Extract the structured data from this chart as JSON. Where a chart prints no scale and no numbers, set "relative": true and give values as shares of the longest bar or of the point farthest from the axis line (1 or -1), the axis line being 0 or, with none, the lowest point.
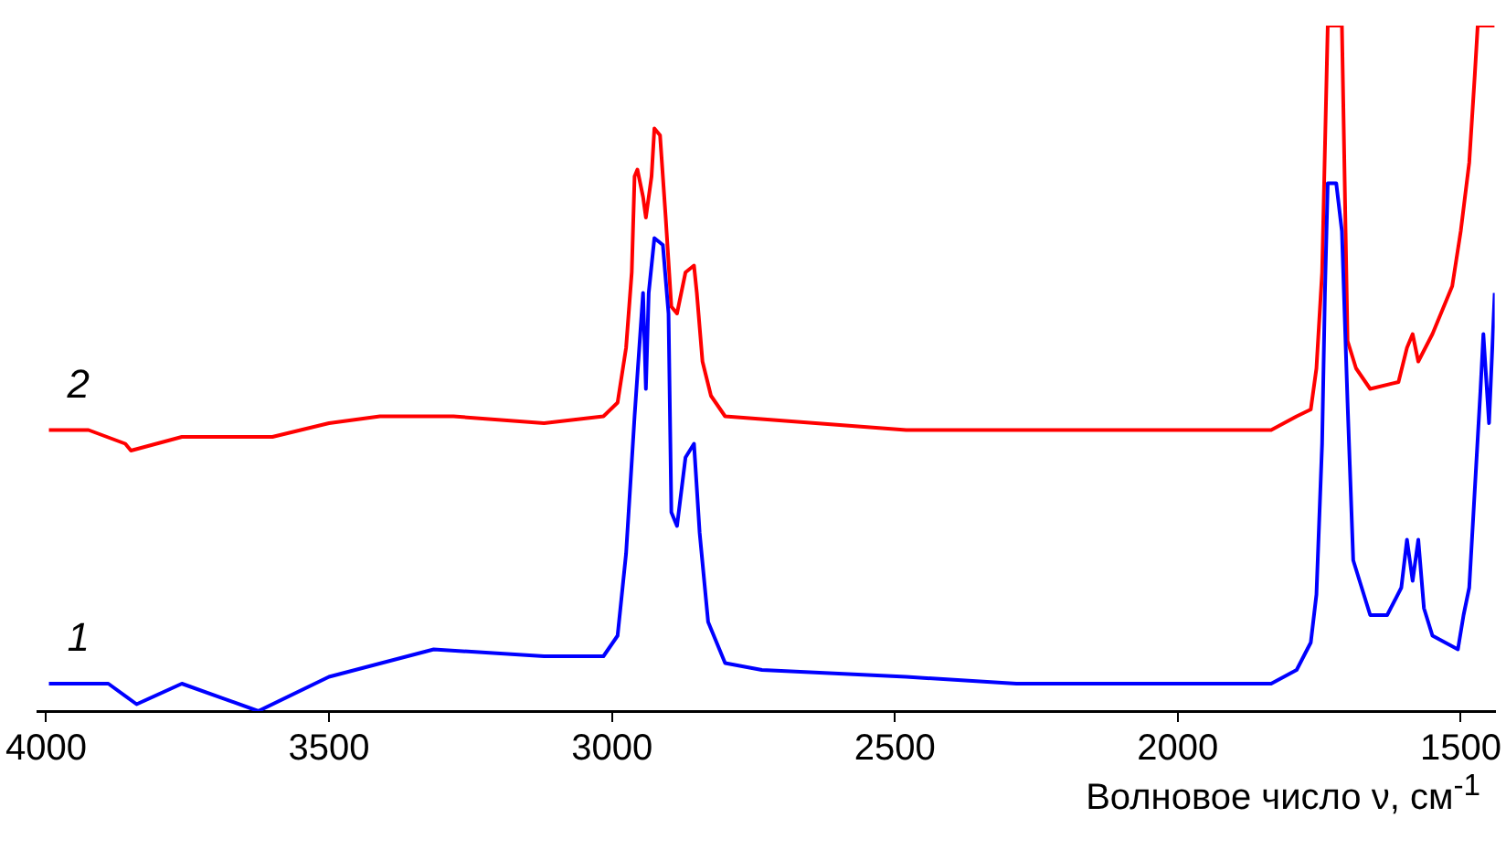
{
  "chart_data": {
    "type": "line",
    "relative": true,
    "xlabel": "Волновое число ν, см$^{-1}$",
    "xlim": [
      4015,
      1440
    ],
    "xticks": [
      4000,
      3500,
      3000,
      2500,
      2000,
      1500
    ],
    "legend": false,
    "marker": "none",
    "line_style": "solid",
    "series": [
      {
        "name": "1",
        "color": "#0000ff",
        "x": [
          3995,
          3890,
          3840,
          3760,
          3625,
          3500,
          3315,
          3120,
          3015,
          2990,
          2975,
          2960,
          2945,
          2940,
          2935,
          2925,
          2910,
          2900,
          2895,
          2885,
          2870,
          2855,
          2845,
          2830,
          2800,
          2735,
          2480,
          2285,
          2000,
          1835,
          1790,
          1765,
          1755,
          1745,
          1740,
          1735,
          1720,
          1710,
          1700,
          1690,
          1660,
          1630,
          1605,
          1595,
          1585,
          1575,
          1565,
          1550,
          1505,
          1495,
          1485,
          1465,
          1460,
          1450,
          1440
        ],
        "values": [
          0.04,
          0.04,
          0.01,
          0.04,
          0,
          0.05,
          0.09,
          0.08,
          0.08,
          0.11,
          0.23,
          0.43,
          0.61,
          0.47,
          0.61,
          0.69,
          0.68,
          0.58,
          0.29,
          0.27,
          0.37,
          0.39,
          0.26,
          0.13,
          0.07,
          0.06,
          0.05,
          0.04,
          0.04,
          0.04,
          0.06,
          0.1,
          0.17,
          0.39,
          0.61,
          0.77,
          0.77,
          0.7,
          0.45,
          0.22,
          0.14,
          0.14,
          0.18,
          0.25,
          0.19,
          0.25,
          0.15,
          0.11,
          0.09,
          0.14,
          0.18,
          0.47,
          0.55,
          0.42,
          0.61
        ]
      },
      {
        "name": "2",
        "color": "#ff0000",
        "x": [
          3995,
          3925,
          3860,
          3850,
          3760,
          3600,
          3500,
          3410,
          3280,
          3120,
          3015,
          2990,
          2975,
          2965,
          2960,
          2955,
          2945,
          2940,
          2930,
          2925,
          2915,
          2905,
          2895,
          2885,
          2870,
          2855,
          2850,
          2840,
          2825,
          2800,
          2480,
          2285,
          2000,
          1835,
          1790,
          1765,
          1755,
          1745,
          1735,
          1710,
          1700,
          1685,
          1660,
          1610,
          1595,
          1585,
          1575,
          1550,
          1515,
          1500,
          1485,
          1475,
          1470,
          1440
        ],
        "values": [
          0.41,
          0.41,
          0.39,
          0.38,
          0.4,
          0.4,
          0.42,
          0.43,
          0.43,
          0.42,
          0.43,
          0.45,
          0.53,
          0.64,
          0.78,
          0.79,
          0.75,
          0.72,
          0.78,
          0.85,
          0.84,
          0.72,
          0.59,
          0.58,
          0.64,
          0.65,
          0.61,
          0.51,
          0.46,
          0.43,
          0.41,
          0.41,
          0.41,
          0.41,
          0.43,
          0.44,
          0.5,
          0.64,
          1,
          1,
          0.54,
          0.5,
          0.47,
          0.48,
          0.53,
          0.55,
          0.51,
          0.55,
          0.62,
          0.7,
          0.8,
          0.93,
          1,
          1
        ]
      }
    ]
  }
}
